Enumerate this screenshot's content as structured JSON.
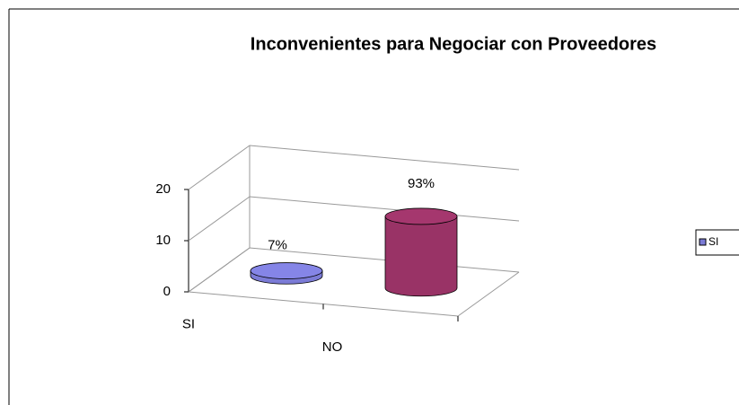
{
  "chart_data": {
    "type": "bar",
    "title": "Inconvenientes para Negociar con Proveedores",
    "categories": [
      "SI",
      "NO"
    ],
    "values": [
      1,
      14
    ],
    "value_labels": [
      "7%",
      "93%"
    ],
    "colors": [
      "#7b7bd6",
      "#993366"
    ],
    "ylim": [
      0,
      20
    ],
    "yticks": [
      0,
      10,
      20
    ],
    "grid": true
  }
}
